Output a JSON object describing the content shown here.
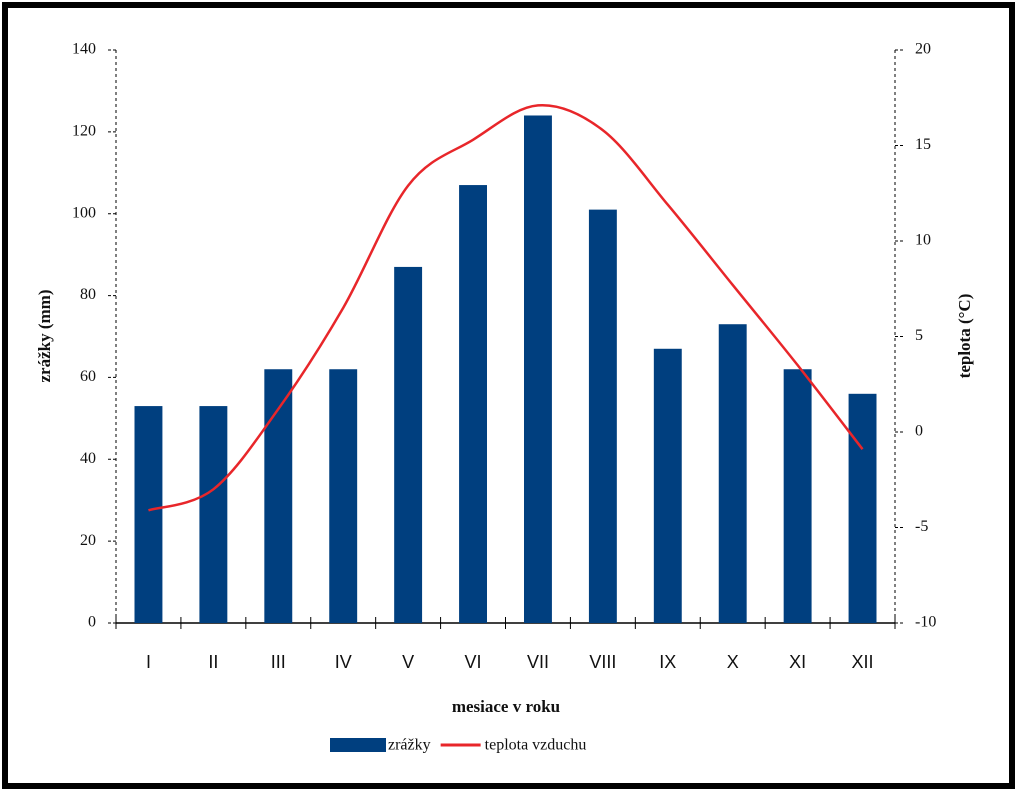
{
  "chart_data": {
    "type": "bar-line",
    "x_label": "mesiace v roku",
    "y_label": "zrážky (mm)",
    "y2_label": "teplota (°C)",
    "categories": [
      "I",
      "II",
      "III",
      "IV",
      "V",
      "VI",
      "VII",
      "VIII",
      "IX",
      "X",
      "XI",
      "XII"
    ],
    "series": [
      {
        "name": "zrážky",
        "type": "bar",
        "color": "#003f7f",
        "values": [
          53,
          53,
          62,
          62,
          87,
          107,
          124,
          101,
          67,
          73,
          62,
          56
        ]
      },
      {
        "name": "teplota vzduchu",
        "type": "line",
        "axis": "y2",
        "color": "#e8262a",
        "values": [
          -4.1,
          -3,
          1.2,
          6.5,
          12.9,
          15.3,
          17.1,
          15.8,
          11.9,
          7.7,
          3.5,
          -0.9
        ]
      }
    ],
    "ylim": [
      0,
      140
    ],
    "yticks": [
      0,
      20,
      40,
      60,
      80,
      100,
      120,
      140
    ],
    "y2lim": [
      -10,
      20
    ],
    "y2ticks": [
      -10,
      -5,
      0,
      5,
      10,
      15,
      20
    ],
    "legend": "bottom"
  }
}
